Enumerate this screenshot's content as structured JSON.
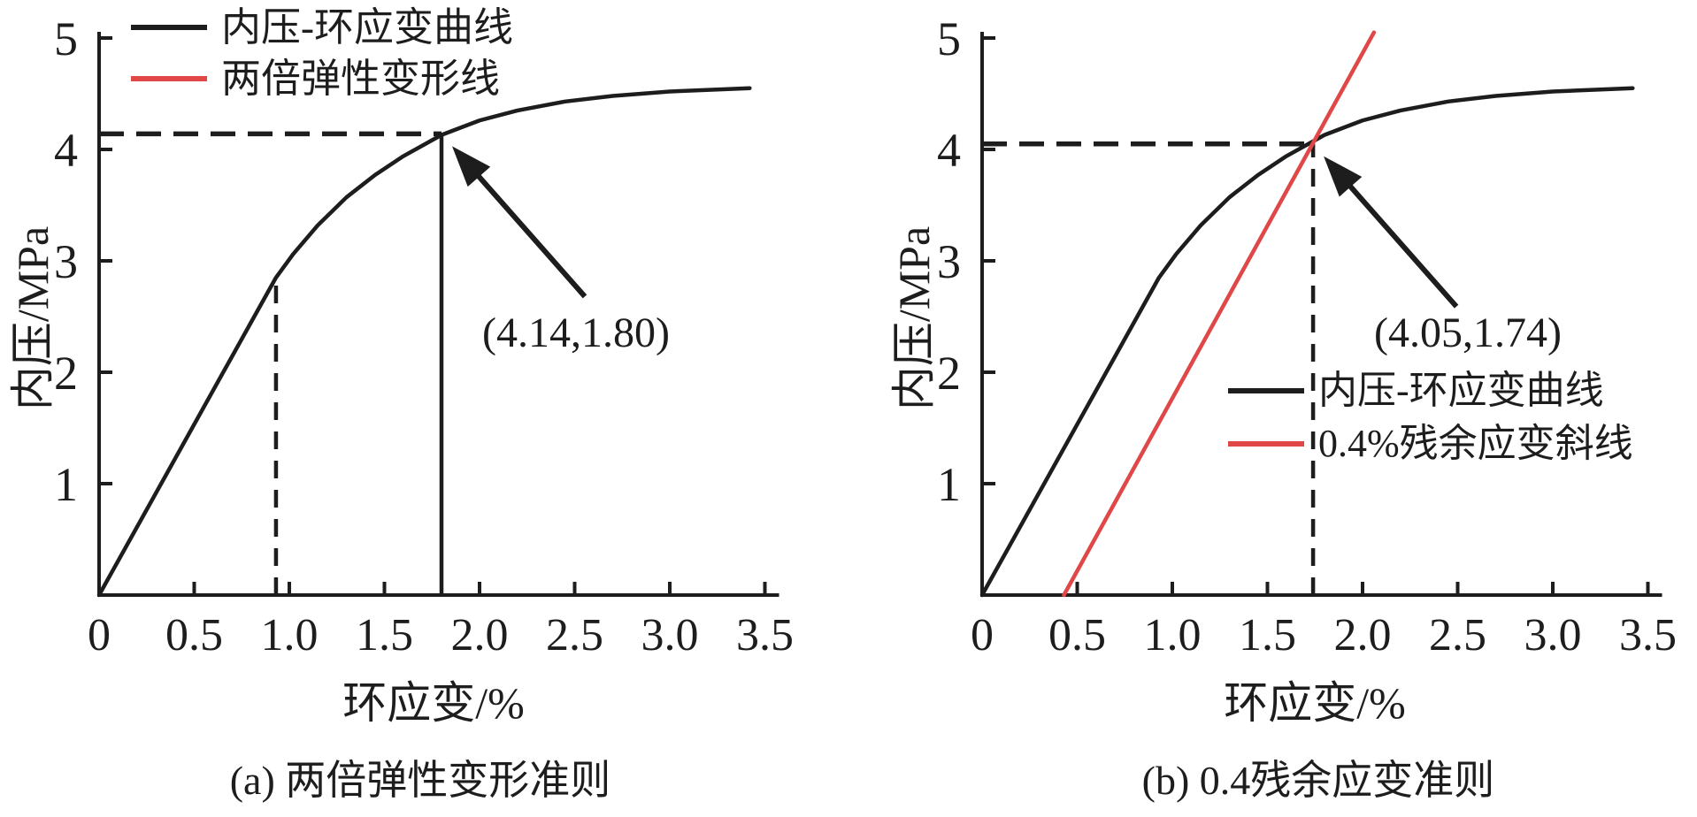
{
  "figure": {
    "panels": [
      {
        "id": "a",
        "caption": "(a) 两倍弹性变形准则",
        "xlabel": "环应变/%",
        "ylabel": "内压/MPa",
        "legend": [
          {
            "label": "内压-环应变曲线",
            "color": "#1d1d1d"
          },
          {
            "label": "两倍弹性变形线",
            "color": "#e04848"
          }
        ],
        "annotation": {
          "text": "(4.14,1.80)",
          "pressure_mpa": 4.14,
          "strain_pct": 1.8
        },
        "chart_data": {
          "type": "line",
          "xlabel": "环应变/%",
          "ylabel": "内压/MPa",
          "xlim": [
            0,
            3.5
          ],
          "ylim": [
            0,
            5
          ],
          "x_ticks": [
            0,
            0.5,
            1.0,
            1.5,
            2.0,
            2.5,
            3.0,
            3.5
          ],
          "x_tick_labels": [
            "0",
            "0.5",
            "1.0",
            "1.5",
            "2.0",
            "2.5",
            "3.0",
            "3.5"
          ],
          "y_ticks": [
            1,
            2,
            3,
            4,
            5
          ],
          "y_tick_labels": [
            "1",
            "2",
            "3",
            "4",
            "5"
          ],
          "grid": false,
          "legend_position": "top-left",
          "series": [
            {
              "name": "内压-环应变曲线",
              "color": "#1d1d1d",
              "points": [
                [
                  0,
                  0
                ],
                [
                  0.93,
                  2.85
                ],
                [
                  1.02,
                  3.06
                ],
                [
                  1.15,
                  3.32
                ],
                [
                  1.3,
                  3.57
                ],
                [
                  1.45,
                  3.77
                ],
                [
                  1.6,
                  3.94
                ],
                [
                  1.8,
                  4.13
                ],
                [
                  2.0,
                  4.26
                ],
                [
                  2.2,
                  4.35
                ],
                [
                  2.45,
                  4.43
                ],
                [
                  2.7,
                  4.48
                ],
                [
                  3.0,
                  4.52
                ],
                [
                  3.42,
                  4.55
                ]
              ]
            }
          ],
          "guides": [
            {
              "type": "h-dashed",
              "y": 4.14,
              "x0": 0,
              "x1": 1.8
            },
            {
              "type": "v-dashed",
              "x": 0.93,
              "y0": 0,
              "y1": 2.85
            },
            {
              "type": "v-solid",
              "x": 1.8,
              "y0": 0,
              "y1": 4.14
            }
          ],
          "annotation_point": [
            1.8,
            4.14
          ],
          "annotation_text": "(4.14,1.80)"
        }
      },
      {
        "id": "b",
        "caption": "(b) 0.4残余应变准则",
        "xlabel": "环应变/%",
        "ylabel": "内压/MPa",
        "legend": [
          {
            "label": "内压-环应变曲线",
            "color": "#1d1d1d"
          },
          {
            "label": "0.4%残余应变斜线",
            "color": "#e04848"
          }
        ],
        "annotation": {
          "text": "(4.05,1.74)",
          "pressure_mpa": 4.05,
          "strain_pct": 1.74
        },
        "chart_data": {
          "type": "line",
          "xlabel": "环应变/%",
          "ylabel": "内压/MPa",
          "xlim": [
            0,
            3.5
          ],
          "ylim": [
            0,
            5
          ],
          "x_ticks": [
            0,
            0.5,
            1.0,
            1.5,
            2.0,
            2.5,
            3.0,
            3.5
          ],
          "x_tick_labels": [
            "0",
            "0.5",
            "1.0",
            "1.5",
            "2.0",
            "2.5",
            "3.0",
            "3.5"
          ],
          "y_ticks": [
            1,
            2,
            3,
            4,
            5
          ],
          "y_tick_labels": [
            "1",
            "2",
            "3",
            "4",
            "5"
          ],
          "grid": false,
          "legend_position": "middle-right",
          "series": [
            {
              "name": "内压-环应变曲线",
              "color": "#1d1d1d",
              "points": [
                [
                  0,
                  0
                ],
                [
                  0.93,
                  2.85
                ],
                [
                  1.02,
                  3.06
                ],
                [
                  1.15,
                  3.32
                ],
                [
                  1.3,
                  3.57
                ],
                [
                  1.45,
                  3.77
                ],
                [
                  1.6,
                  3.94
                ],
                [
                  1.8,
                  4.13
                ],
                [
                  2.0,
                  4.26
                ],
                [
                  2.2,
                  4.35
                ],
                [
                  2.45,
                  4.43
                ],
                [
                  2.7,
                  4.48
                ],
                [
                  3.0,
                  4.52
                ],
                [
                  3.42,
                  4.55
                ]
              ]
            },
            {
              "name": "0.4%残余应变斜线",
              "color": "#e04848",
              "points": [
                [
                  0.43,
                  0
                ],
                [
                  2.06,
                  5.05
                ]
              ]
            }
          ],
          "guides": [
            {
              "type": "h-dashed",
              "y": 4.05,
              "x0": 0,
              "x1": 1.74
            },
            {
              "type": "v-dashed",
              "x": 1.74,
              "y0": 0,
              "y1": 4.05
            }
          ],
          "annotation_point": [
            1.74,
            4.05
          ],
          "annotation_text": "(4.05,1.74)"
        }
      }
    ]
  }
}
